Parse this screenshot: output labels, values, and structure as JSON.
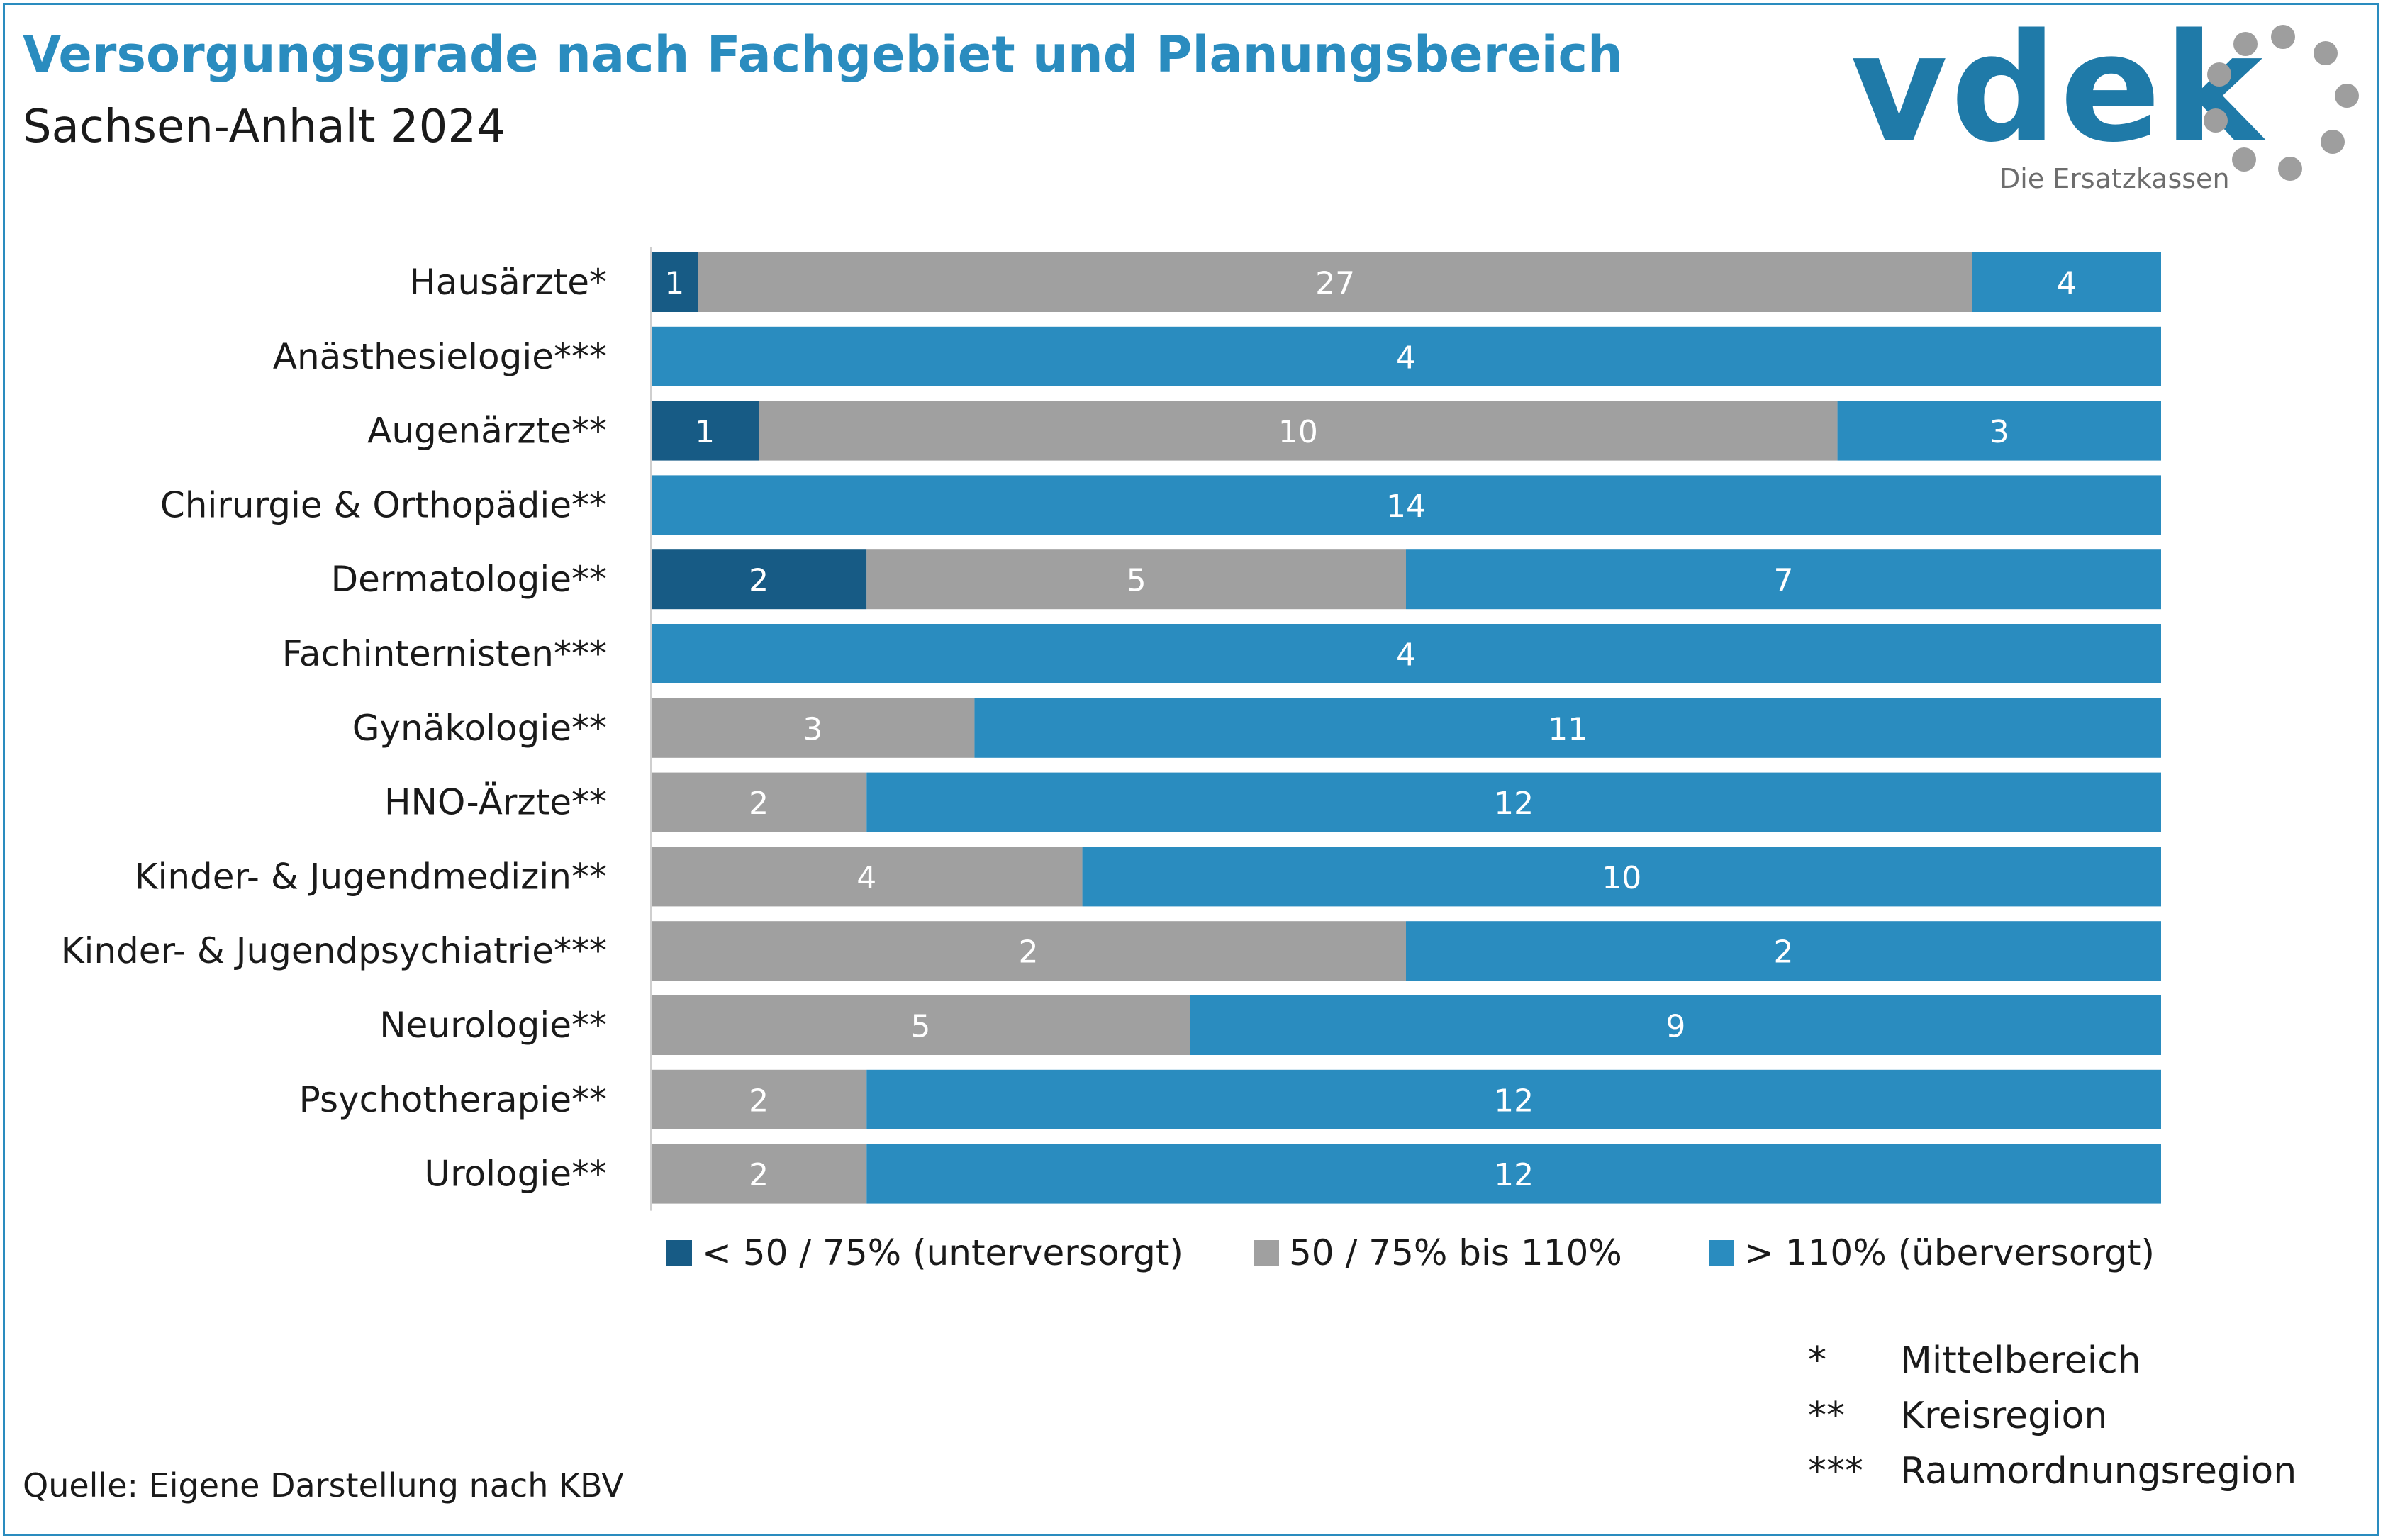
{
  "header": {
    "title": "Versorgungsgrade nach Fachgebiet und Planungsbereich",
    "subtitle": "Sachsen-Anhalt 2024"
  },
  "logo": {
    "wordmark": "vdek",
    "tagline": "Die Ersatzkassen",
    "colors": {
      "wordmark": "#1f7aa8",
      "ring": "#9e9e9e"
    }
  },
  "chart_data": {
    "type": "bar",
    "orientation": "horizontal",
    "stacked": true,
    "normalized_percent": true,
    "categories": [
      "Hausärzte*",
      "Anästhesielogie***",
      "Augenärzte**",
      "Chirurgie & Orthopädie**",
      "Dermatologie**",
      "Fachinternisten***",
      "Gynäkologie**",
      "HNO-Ärzte**",
      "Kinder- & Jugendmedizin**",
      "Kinder- & Jugendpsychiatrie***",
      "Neurologie**",
      "Psychotherapie**",
      "Urologie**"
    ],
    "series": [
      {
        "name": "< 50 / 75% (unterversorgt)",
        "color": "#175b85",
        "values": [
          1,
          0,
          1,
          0,
          2,
          0,
          0,
          0,
          0,
          0,
          0,
          0,
          0
        ]
      },
      {
        "name": "50 / 75% bis 110%",
        "color": "#a0a0a0",
        "values": [
          27,
          0,
          10,
          0,
          5,
          0,
          3,
          2,
          4,
          2,
          5,
          2,
          2
        ]
      },
      {
        "name": "> 110% (überversorgt)",
        "color": "#2a8cbf",
        "values": [
          4,
          4,
          3,
          14,
          7,
          4,
          11,
          12,
          10,
          2,
          9,
          12,
          12
        ]
      }
    ],
    "legend_position": "bottom",
    "grid": false
  },
  "notes": [
    {
      "symbol": "*",
      "text": "Mittelbereich"
    },
    {
      "symbol": "**",
      "text": "Kreisregion"
    },
    {
      "symbol": "***",
      "text": "Raumordnungsregion"
    }
  ],
  "source": "Quelle: Eigene Darstellung nach KBV"
}
